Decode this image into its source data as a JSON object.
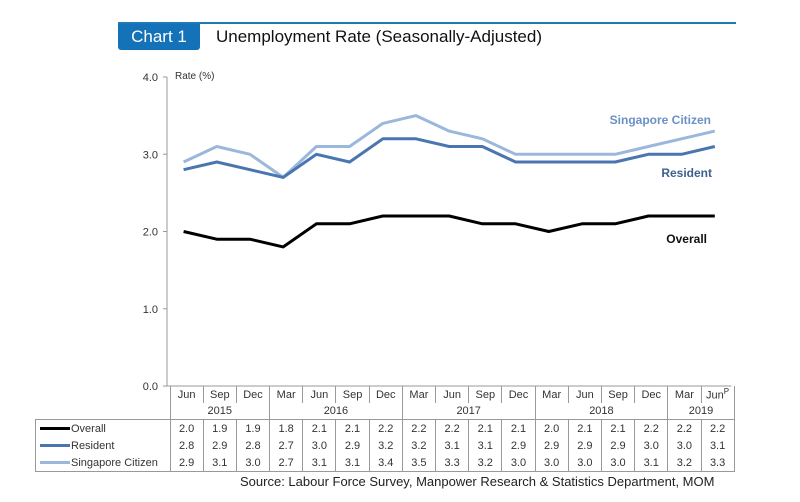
{
  "header": {
    "badge": "Chart 1",
    "title": "Unemployment Rate (Seasonally-Adjusted)"
  },
  "source": "Source: Labour Force Survey, Manpower Research & Statistics Department, MOM",
  "chart_data": {
    "type": "line",
    "title": "Unemployment Rate (Seasonally-Adjusted)",
    "ylabel": "Rate (%)",
    "xlabel": "",
    "ylim": [
      0,
      4
    ],
    "yticks": [
      "0.0",
      "1.0",
      "2.0",
      "3.0",
      "4.0"
    ],
    "grid": false,
    "categories": [
      "Jun",
      "Sep",
      "Dec",
      "Mar",
      "Jun",
      "Sep",
      "Dec",
      "Mar",
      "Jun",
      "Sep",
      "Dec",
      "Mar",
      "Jun",
      "Sep",
      "Dec",
      "Mar",
      "Jun"
    ],
    "last_category_note": "P",
    "years": [
      {
        "label": "2015",
        "span": 3
      },
      {
        "label": "2016",
        "span": 4
      },
      {
        "label": "2017",
        "span": 4
      },
      {
        "label": "2018",
        "span": 4
      },
      {
        "label": "2019",
        "span": 2
      }
    ],
    "series": [
      {
        "name": "Overall",
        "color": "#000000",
        "label_color": "#111111",
        "values": [
          2.0,
          1.9,
          1.9,
          1.8,
          2.1,
          2.1,
          2.2,
          2.2,
          2.2,
          2.1,
          2.1,
          2.0,
          2.1,
          2.1,
          2.2,
          2.2,
          2.2
        ]
      },
      {
        "name": "Resident",
        "color": "#4a76b0",
        "label_color": "#3d5f8f",
        "values": [
          2.8,
          2.9,
          2.8,
          2.7,
          3.0,
          2.9,
          3.2,
          3.2,
          3.1,
          3.1,
          2.9,
          2.9,
          2.9,
          2.9,
          3.0,
          3.0,
          3.1
        ]
      },
      {
        "name": "Singapore Citizen",
        "color": "#9bb7dc",
        "label_color": "#6a90c6",
        "values": [
          2.9,
          3.1,
          3.0,
          2.7,
          3.1,
          3.1,
          3.4,
          3.5,
          3.3,
          3.2,
          3.0,
          3.0,
          3.0,
          3.0,
          3.1,
          3.2,
          3.3
        ]
      }
    ],
    "legend": "table-below"
  }
}
